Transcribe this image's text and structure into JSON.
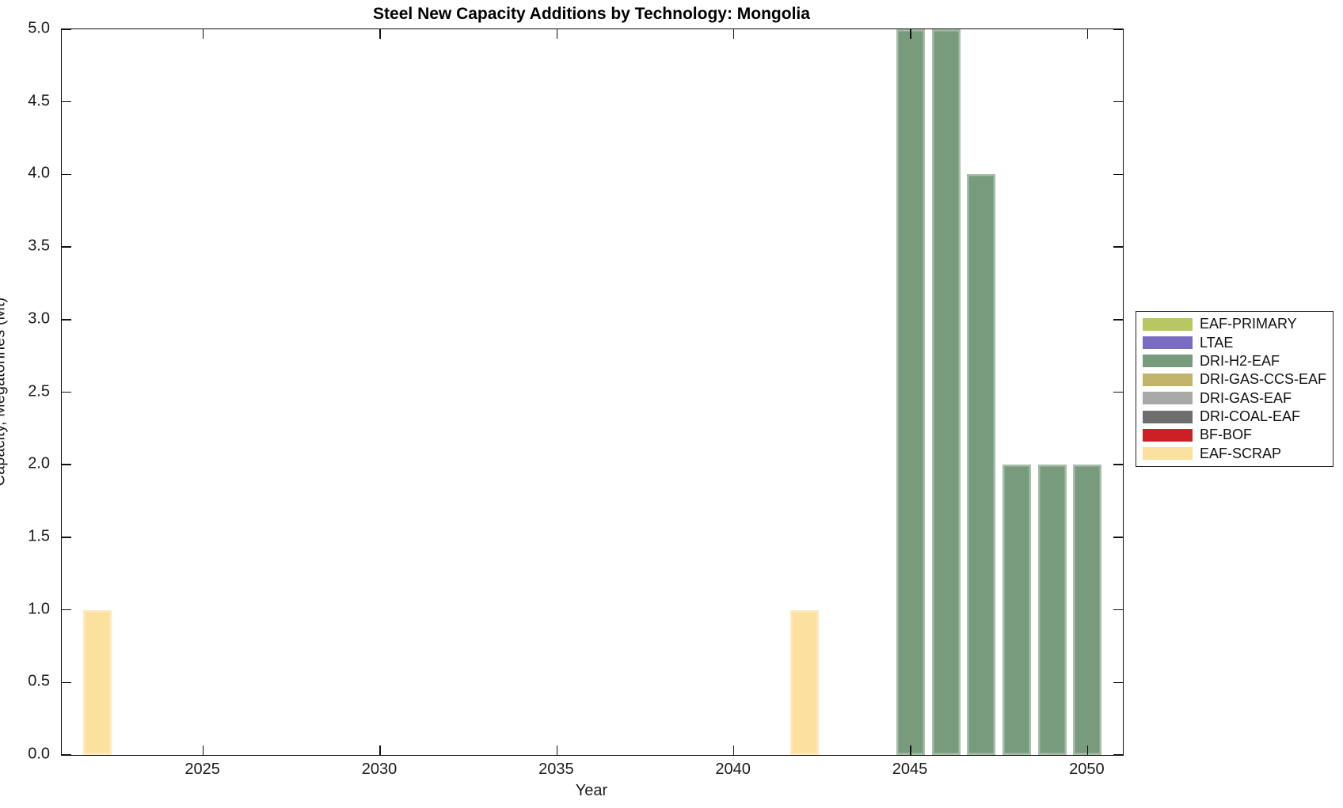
{
  "chart_data": {
    "type": "bar",
    "title": "Steel New Capacity Additions by Technology: Mongolia",
    "xlabel": "Year",
    "ylabel": "Capacity, Megatonnes (Mt)",
    "xlim": [
      2021,
      2051
    ],
    "ylim": [
      0,
      5
    ],
    "xticks": [
      2025,
      2030,
      2035,
      2040,
      2045,
      2050
    ],
    "ytick_min": 0,
    "ytick_max": 5,
    "ytick_step": 0.5,
    "ytick_decimals": 1,
    "bar_width_years": 0.8,
    "grid": false,
    "legend_position": "right-outside",
    "bars": [
      {
        "year": 2022,
        "technology": "EAF-SCRAP",
        "value": 1.0
      },
      {
        "year": 2042,
        "technology": "EAF-SCRAP",
        "value": 1.0
      },
      {
        "year": 2045,
        "technology": "DRI-H2-EAF",
        "value": 5.0
      },
      {
        "year": 2046,
        "technology": "DRI-H2-EAF",
        "value": 5.0
      },
      {
        "year": 2047,
        "technology": "DRI-H2-EAF",
        "value": 4.0
      },
      {
        "year": 2048,
        "technology": "DRI-H2-EAF",
        "value": 2.0
      },
      {
        "year": 2049,
        "technology": "DRI-H2-EAF",
        "value": 2.0
      },
      {
        "year": 2050,
        "technology": "DRI-H2-EAF",
        "value": 2.0
      }
    ],
    "legend": [
      {
        "label": "EAF-PRIMARY",
        "color": "#b9c763"
      },
      {
        "label": "LTAE",
        "color": "#7a6cc0"
      },
      {
        "label": "DRI-H2-EAF",
        "color": "#789b7d"
      },
      {
        "label": "DRI-GAS-CCS-EAF",
        "color": "#c2b56b"
      },
      {
        "label": "DRI-GAS-EAF",
        "color": "#a9a9a9"
      },
      {
        "label": "DRI-COAL-EAF",
        "color": "#6e6e6e"
      },
      {
        "label": "BF-BOF",
        "color": "#cb2026"
      },
      {
        "label": "EAF-SCRAP",
        "color": "#fce19e"
      }
    ]
  }
}
